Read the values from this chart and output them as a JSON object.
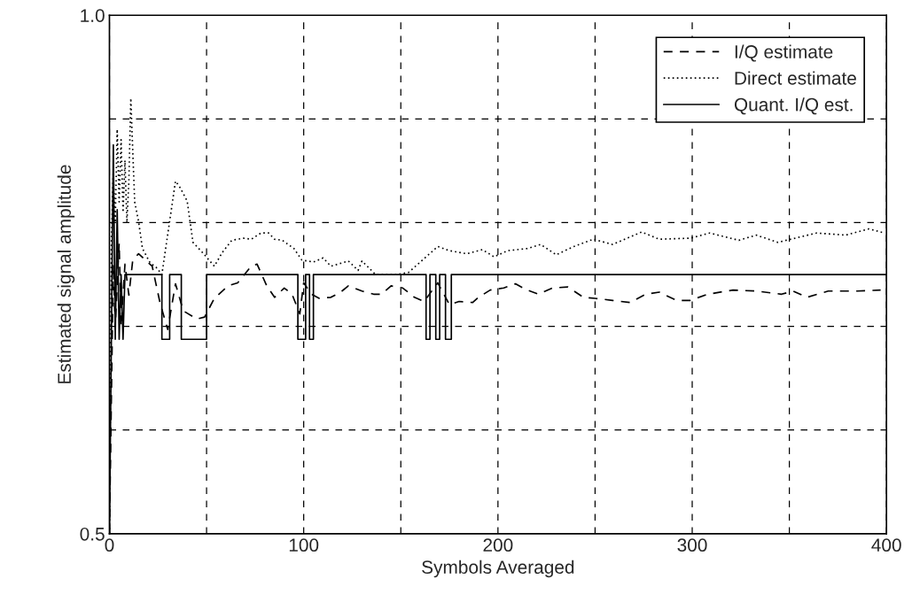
{
  "chart_data": {
    "type": "line",
    "xlabel": "Symbols Averaged",
    "ylabel": "Estimated signal amplitude",
    "xlim": [
      0,
      400
    ],
    "ylim": [
      0.5,
      1.0
    ],
    "xticks": [
      0,
      {
        "value": 50,
        "label": null
      },
      100,
      {
        "value": 150,
        "label": null
      },
      200,
      {
        "value": 250,
        "label": null
      },
      300,
      {
        "value": 350,
        "label": null
      },
      400
    ],
    "yticks": [
      0.5,
      {
        "value": 0.6,
        "label": null
      },
      {
        "value": 0.7,
        "label": null
      },
      {
        "value": 0.8,
        "label": null
      },
      {
        "value": 0.9,
        "label": null
      },
      {
        "value": 1.0,
        "label": "1.0"
      }
    ],
    "grid": true,
    "legend": "top right",
    "marker": "none",
    "series": [
      {
        "name": "I/Q estimate",
        "color": "#000000",
        "line_style": "dashed",
        "x": [
          0,
          2,
          3,
          5,
          6,
          8,
          10,
          12,
          15,
          22,
          26,
          30,
          34,
          38,
          45,
          49,
          54,
          61,
          66,
          73,
          76,
          81,
          85,
          90,
          94,
          98,
          100,
          104,
          108,
          114,
          119,
          123,
          130,
          136,
          140,
          145,
          151,
          157,
          162,
          169,
          175,
          180,
          187,
          190,
          196,
          203,
          209,
          215,
          221,
          228,
          236,
          244,
          250,
          259,
          268,
          276,
          283,
          292,
          299,
          308,
          321,
          333,
          346,
          352,
          359,
          370,
          385,
          397
        ],
        "values": [
          0.5,
          0.76,
          0.7,
          0.78,
          0.7,
          0.76,
          0.73,
          0.764,
          0.77,
          0.758,
          0.723,
          0.697,
          0.741,
          0.715,
          0.707,
          0.709,
          0.727,
          0.739,
          0.742,
          0.758,
          0.76,
          0.739,
          0.728,
          0.737,
          0.731,
          0.712,
          0.742,
          0.731,
          0.727,
          0.728,
          0.733,
          0.739,
          0.734,
          0.731,
          0.731,
          0.739,
          0.737,
          0.728,
          0.724,
          0.742,
          0.721,
          0.724,
          0.723,
          0.728,
          0.735,
          0.737,
          0.741,
          0.735,
          0.731,
          0.737,
          0.738,
          0.728,
          0.727,
          0.725,
          0.723,
          0.731,
          0.733,
          0.725,
          0.725,
          0.731,
          0.735,
          0.734,
          0.731,
          0.734,
          0.728,
          0.734,
          0.734,
          0.735
        ]
      },
      {
        "name": "Direct estimate",
        "color": "#000000",
        "line_style": "dotted",
        "x": [
          0,
          1,
          2,
          3,
          4,
          5,
          6,
          7,
          8,
          9,
          10,
          11,
          12,
          13,
          15,
          17,
          21,
          24,
          27,
          34,
          36,
          40,
          43,
          48,
          54,
          58,
          63,
          69,
          73,
          78,
          82,
          85,
          89,
          95,
          99,
          105,
          110,
          114,
          123,
          128,
          130,
          137,
          142,
          148,
          154,
          160,
          169,
          175,
          184,
          192,
          198,
          205,
          215,
          222,
          230,
          239,
          249,
          259,
          274,
          283,
          299,
          309,
          324,
          333,
          344,
          364,
          379,
          391,
          399
        ],
        "values": [
          0.5,
          0.78,
          0.85,
          0.8,
          0.89,
          0.82,
          0.88,
          0.81,
          0.86,
          0.8,
          0.84,
          0.92,
          0.87,
          0.82,
          0.801,
          0.775,
          0.761,
          0.757,
          0.75,
          0.84,
          0.835,
          0.821,
          0.781,
          0.771,
          0.758,
          0.771,
          0.783,
          0.785,
          0.784,
          0.79,
          0.79,
          0.784,
          0.783,
          0.775,
          0.764,
          0.762,
          0.766,
          0.758,
          0.763,
          0.754,
          0.763,
          0.75,
          0.75,
          0.75,
          0.752,
          0.762,
          0.777,
          0.773,
          0.77,
          0.774,
          0.767,
          0.773,
          0.775,
          0.779,
          0.769,
          0.777,
          0.784,
          0.779,
          0.791,
          0.784,
          0.785,
          0.79,
          0.783,
          0.788,
          0.781,
          0.79,
          0.788,
          0.794,
          0.79
        ]
      },
      {
        "name": "Quant. I/Q est.",
        "color": "#000000",
        "line_style": "solid",
        "x": [
          0,
          2,
          3,
          4,
          5,
          6,
          7,
          8,
          27,
          27,
          31,
          31,
          37,
          37,
          50,
          50,
          97,
          97,
          101,
          101,
          103,
          103,
          105,
          105,
          163,
          163,
          165,
          165,
          168,
          168,
          170,
          170,
          173,
          173,
          176,
          176,
          400
        ],
        "values": [
          0.5,
          0.875,
          0.6875,
          0.8125,
          0.6875,
          0.75,
          0.6875,
          0.75,
          0.75,
          0.6875,
          0.6875,
          0.75,
          0.75,
          0.6875,
          0.6875,
          0.75,
          0.75,
          0.6875,
          0.6875,
          0.75,
          0.75,
          0.6875,
          0.6875,
          0.75,
          0.75,
          0.6875,
          0.6875,
          0.75,
          0.75,
          0.6875,
          0.6875,
          0.75,
          0.75,
          0.6875,
          0.6875,
          0.75,
          0.75
        ]
      }
    ]
  }
}
